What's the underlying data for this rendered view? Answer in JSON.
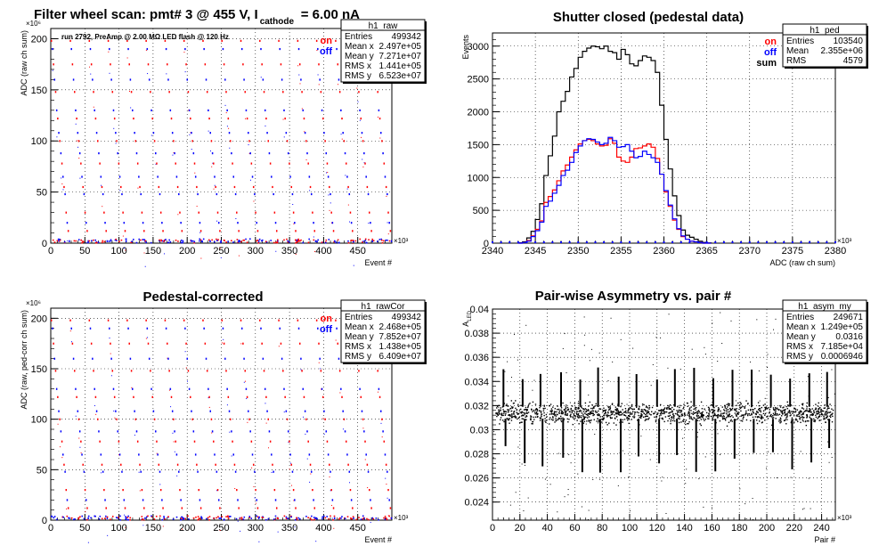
{
  "chart_data": [
    {
      "id": "raw",
      "type": "scatter",
      "title_main": "Filter wheel scan: pmt#   3 @   455 V, I",
      "title_sub": "cathode",
      "title_tail": "= 6.00 nA",
      "note": "run 2792, PreAmp @ 2.00 MΩ   LED flash @  120 Hz",
      "xlabel": "Event #",
      "ylabel": "ADC (raw ch sum)",
      "x_exponent": "×10³",
      "y_exponent": "×10⁶",
      "xlim": [
        0,
        500
      ],
      "ylim": [
        0,
        210
      ],
      "xticks": [
        0,
        50,
        100,
        150,
        200,
        250,
        300,
        350,
        400,
        450
      ],
      "yticks": [
        0,
        50,
        100,
        150,
        200
      ],
      "grid": true,
      "legend": [
        {
          "label": "on",
          "color": "#ff0000"
        },
        {
          "label": "off",
          "color": "#0000ff"
        }
      ],
      "legend_position": "top-right",
      "stats": {
        "name": "h1_raw",
        "rows": [
          [
            "Entries",
            "499342"
          ],
          [
            "Mean x",
            "2.497e+05"
          ],
          [
            "Mean y",
            "7.271e+07"
          ],
          [
            "RMS x",
            "1.441e+05"
          ],
          [
            "RMS y",
            "6.523e+07"
          ]
        ]
      },
      "level_pattern": [
        198,
        190,
        175,
        160,
        148,
        130,
        122,
        108,
        100,
        88,
        78,
        65,
        55,
        48,
        30,
        20,
        12,
        2
      ],
      "blocks": 18
    },
    {
      "id": "ped",
      "type": "histogram",
      "title_main": "Shutter closed (pedestal data)",
      "xlabel": "ADC (raw ch sum)",
      "ylabel": "Events",
      "x_exponent": "×10³",
      "xlim": [
        2340,
        2380
      ],
      "ylim": [
        0,
        3200
      ],
      "xticks": [
        2340,
        2345,
        2350,
        2355,
        2360,
        2365,
        2370,
        2375,
        2380
      ],
      "yticks": [
        0,
        500,
        1000,
        1500,
        2000,
        2500,
        3000
      ],
      "grid": true,
      "legend": [
        {
          "label": "on",
          "color": "#ff0000"
        },
        {
          "label": "off",
          "color": "#0000ff"
        },
        {
          "label": "sum",
          "color": "#000000"
        }
      ],
      "legend_position": "top-right",
      "stats": {
        "name": "h1_ped",
        "rows": [
          [
            "Entries",
            "103540"
          ],
          [
            "Mean",
            "2.355e+06"
          ],
          [
            "RMS",
            "4579"
          ]
        ]
      },
      "bin_width": 0.5,
      "x_start": 2343,
      "sum": [
        5,
        20,
        80,
        180,
        360,
        600,
        1030,
        1330,
        1630,
        2000,
        2160,
        2310,
        2530,
        2660,
        2830,
        2920,
        2970,
        3000,
        2990,
        2960,
        3000,
        2920,
        2900,
        2800,
        2950,
        2870,
        2730,
        2700,
        2780,
        2850,
        2830,
        2780,
        2600,
        2100,
        1580,
        1130,
        720,
        420,
        200,
        120,
        90,
        60,
        30,
        10,
        4
      ],
      "on": [
        0,
        10,
        40,
        110,
        210,
        340,
        620,
        710,
        810,
        950,
        1100,
        1190,
        1310,
        1420,
        1510,
        1560,
        1580,
        1560,
        1510,
        1480,
        1490,
        1590,
        1520,
        1310,
        1250,
        1230,
        1310,
        1440,
        1450,
        1480,
        1510,
        1460,
        1290,
        1050,
        780,
        560,
        350,
        210,
        100,
        60,
        30,
        20,
        10,
        0,
        0
      ],
      "off": [
        0,
        10,
        30,
        100,
        190,
        320,
        560,
        640,
        760,
        880,
        1030,
        1110,
        1230,
        1380,
        1480,
        1560,
        1590,
        1580,
        1540,
        1500,
        1520,
        1610,
        1560,
        1460,
        1470,
        1500,
        1400,
        1300,
        1320,
        1400,
        1350,
        1300,
        1230,
        1050,
        800,
        580,
        370,
        220,
        110,
        60,
        30,
        20,
        10,
        0,
        0
      ]
    },
    {
      "id": "cor",
      "type": "scatter",
      "title_main": "Pedestal-corrected",
      "xlabel": "Event #",
      "ylabel": "ADC (raw, ped-corr ch sum)",
      "x_exponent": "×10³",
      "y_exponent": "×10⁶",
      "xlim": [
        0,
        500
      ],
      "ylim": [
        0,
        210
      ],
      "xticks": [
        0,
        50,
        100,
        150,
        200,
        250,
        300,
        350,
        400,
        450
      ],
      "yticks": [
        0,
        50,
        100,
        150,
        200
      ],
      "grid": true,
      "legend": [
        {
          "label": "on",
          "color": "#ff0000"
        },
        {
          "label": "off",
          "color": "#0000ff"
        }
      ],
      "legend_position": "top-right",
      "stats": {
        "name": "h1_rawCor",
        "rows": [
          [
            "Entries",
            "499342"
          ],
          [
            "Mean x",
            "2.468e+05"
          ],
          [
            "Mean y",
            "7.852e+07"
          ],
          [
            "RMS x",
            "1.438e+05"
          ],
          [
            "RMS y",
            "6.409e+07"
          ]
        ]
      },
      "level_pattern": [
        198,
        190,
        175,
        160,
        148,
        130,
        122,
        108,
        100,
        88,
        78,
        65,
        55,
        48,
        30,
        20,
        12,
        2
      ],
      "blocks": 18
    },
    {
      "id": "asym",
      "type": "scatter",
      "title_main": "Pair-wise Asymmetry vs. pair #",
      "xlabel": "Pair #",
      "ylabel": "A",
      "ylabel_sub": "LED",
      "x_exponent": "×10³",
      "xlim": [
        0,
        250
      ],
      "ylim": [
        0.0225,
        0.04
      ],
      "xticks": [
        0,
        20,
        40,
        60,
        80,
        100,
        120,
        140,
        160,
        180,
        200,
        220,
        240
      ],
      "yticks": [
        0.024,
        0.026,
        0.028,
        0.03,
        0.032,
        0.034,
        0.036,
        0.038,
        0.04
      ],
      "ytick_labels": [
        "0.024",
        "0.026",
        "0.028",
        "0.03",
        "0.032",
        "0.034",
        "0.036",
        "0.038",
        "0.04"
      ],
      "grid": true,
      "stats": {
        "name": "h1_asym_my",
        "rows": [
          [
            "Entries",
            "249671"
          ],
          [
            "Mean x",
            "1.249e+05"
          ],
          [
            "Mean y",
            "0.0316"
          ],
          [
            "RMS x",
            "7.185e+04"
          ],
          [
            "RMS y",
            "0.0006946"
          ]
        ]
      },
      "band_center": 0.0314,
      "band_halfwidth": 0.0006,
      "spikes": [
        8,
        22,
        35,
        50,
        64,
        77,
        92,
        105,
        120,
        133,
        147,
        161,
        175,
        189,
        203,
        217,
        231,
        244
      ]
    }
  ]
}
